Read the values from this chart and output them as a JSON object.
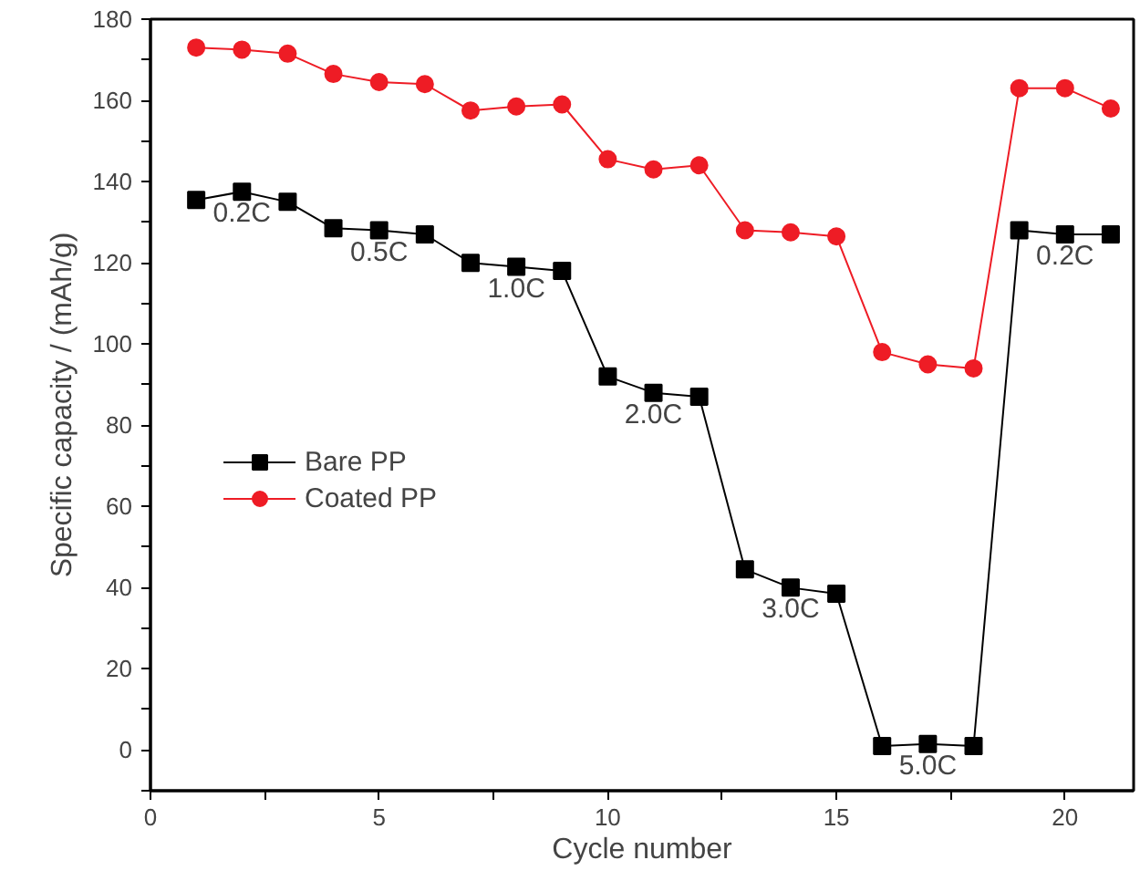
{
  "chart_data": {
    "type": "line",
    "xlabel": "Cycle number",
    "ylabel": "Specific capacity / (mAh/g)",
    "x": [
      1,
      2,
      3,
      4,
      5,
      6,
      7,
      8,
      9,
      10,
      11,
      12,
      13,
      14,
      15,
      16,
      17,
      18,
      19,
      20,
      21
    ],
    "series": [
      {
        "name": "Bare PP",
        "color": "#000000",
        "marker": "square",
        "values": [
          135.5,
          137.5,
          135,
          128.5,
          128,
          127,
          120,
          119,
          118,
          92,
          88,
          87,
          44.5,
          40,
          38.5,
          1,
          1.5,
          1,
          128,
          127,
          127
        ]
      },
      {
        "name": "Coated PP",
        "color": "#ee1c25",
        "marker": "circle",
        "values": [
          173,
          172.5,
          171.5,
          166.5,
          164.5,
          164,
          157.5,
          158.5,
          159,
          145.5,
          143,
          144,
          128,
          127.5,
          126.5,
          98,
          95,
          94,
          163,
          163,
          158
        ]
      }
    ],
    "xlim": [
      0,
      21.5
    ],
    "ylim": [
      -10,
      180
    ],
    "xticks": [
      0,
      {
        "value": 2.5,
        "label": null
      },
      5,
      {
        "value": 7.5,
        "label": null
      },
      10,
      {
        "value": 12.5,
        "label": null
      },
      15,
      {
        "value": 17.5,
        "label": null
      },
      20
    ],
    "yticks": [
      {
        "value": -10,
        "label": null
      },
      0,
      {
        "value": 10,
        "label": null
      },
      20,
      {
        "value": 30,
        "label": null
      },
      40,
      {
        "value": 50,
        "label": null
      },
      60,
      {
        "value": 70,
        "label": null
      },
      80,
      {
        "value": 90,
        "label": null
      },
      100,
      {
        "value": 110,
        "label": null
      },
      120,
      {
        "value": 130,
        "label": null
      },
      140,
      {
        "value": 150,
        "label": null
      },
      160,
      {
        "value": 170,
        "label": null
      },
      180
    ],
    "annotations": [
      "0.2C",
      "0.5C",
      "1.0C",
      "2.0C",
      "3.0C",
      "5.0C",
      "0.2C"
    ],
    "legend": "left",
    "grid": false,
    "line_style": "solid"
  }
}
